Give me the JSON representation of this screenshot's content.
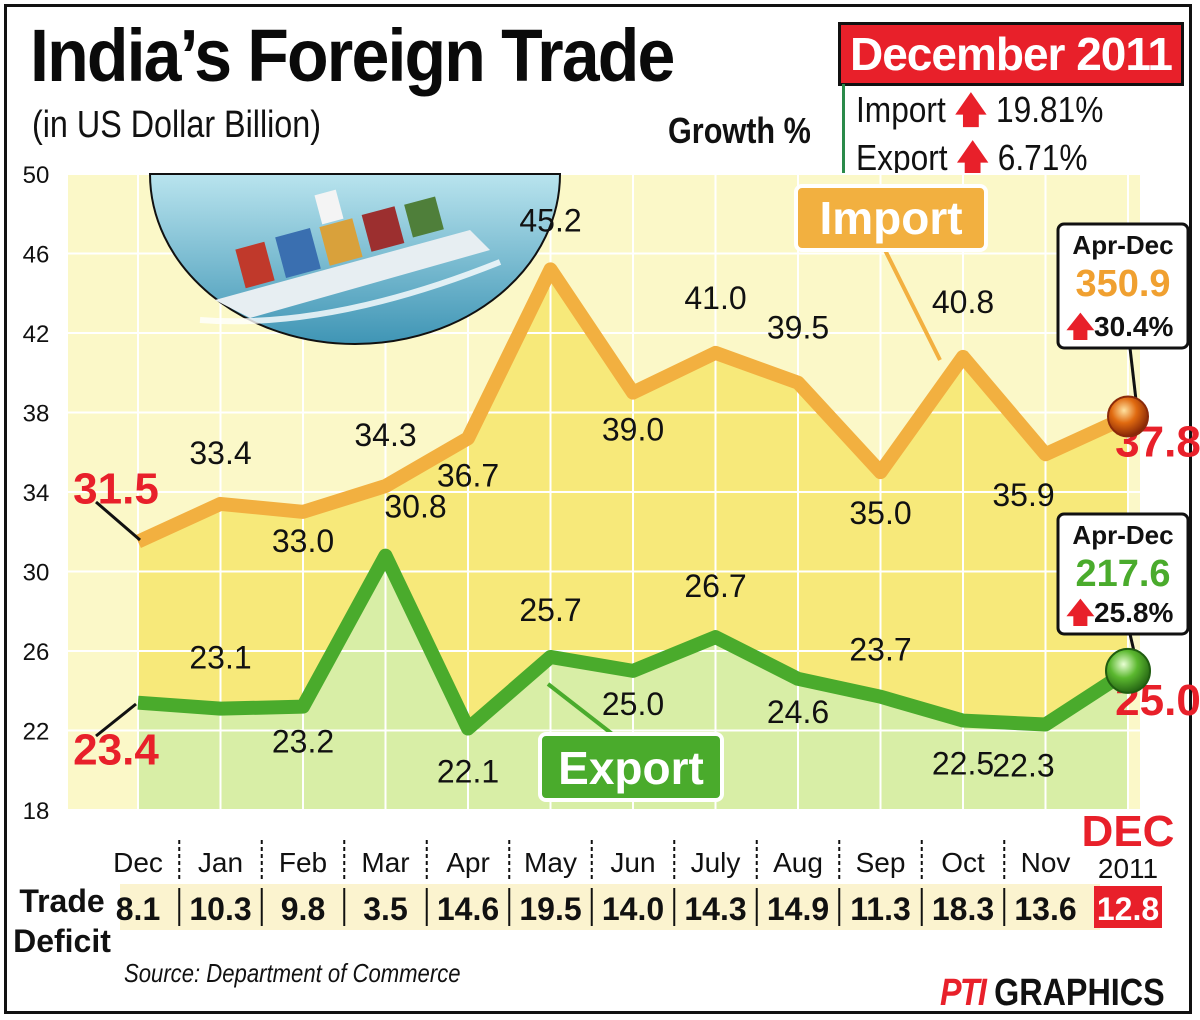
{
  "header": {
    "title": "India’s Foreign Trade",
    "subtitle": "(in US Dollar Billion)",
    "month_badge": "December 2011"
  },
  "growth": {
    "label": "Growth %",
    "import_label": "Import",
    "import_value": "19.81%",
    "export_label": "Export",
    "export_value": "6.71%"
  },
  "chart_data": {
    "type": "line",
    "title": "India’s Foreign Trade",
    "subtitle": "(in US Dollar Billion)",
    "categories": [
      "Dec",
      "Jan",
      "Feb",
      "Mar",
      "Apr",
      "May",
      "Jun",
      "July",
      "Aug",
      "Sep",
      "Oct",
      "Nov",
      "DEC"
    ],
    "year_label": "2011",
    "ylim": [
      18,
      50
    ],
    "yticks": [
      18,
      22,
      26,
      30,
      34,
      38,
      42,
      46,
      50
    ],
    "grid": true,
    "series": [
      {
        "name": "Import",
        "color": "#f2b040",
        "values": [
          31.5,
          33.4,
          33.0,
          34.3,
          36.7,
          45.2,
          39.0,
          41.0,
          39.5,
          35.0,
          40.8,
          35.9,
          37.8
        ],
        "labels": [
          "31.5",
          "33.4",
          "33.0",
          "34.3",
          "36.7",
          "45.2",
          "39.0",
          "41.0",
          "39.5",
          "35.0",
          "40.8",
          "35.9",
          "37.8"
        ]
      },
      {
        "name": "Export",
        "color": "#4aab2c",
        "values": [
          23.4,
          23.1,
          23.2,
          30.8,
          22.1,
          25.7,
          25.0,
          26.7,
          24.6,
          23.7,
          22.5,
          22.3,
          25.0
        ],
        "labels": [
          "23.4",
          "23.1",
          "23.2",
          "30.8",
          "22.1",
          "25.7",
          "25.0",
          "26.7",
          "24.6",
          "23.7",
          "22.5",
          "22.3",
          "25.0"
        ]
      }
    ],
    "trade_deficit": {
      "label_line1": "Trade",
      "label_line2": "Deficit",
      "values": [
        "8.1",
        "10.3",
        "9.8",
        "3.5",
        "14.6",
        "19.5",
        "14.0",
        "14.3",
        "14.9",
        "11.3",
        "18.3",
        "13.6",
        "12.8"
      ]
    },
    "callouts": {
      "import": {
        "period": "Apr-Dec",
        "total": "350.9",
        "growth": "30.4%"
      },
      "export": {
        "period": "Apr-Dec",
        "total": "217.6",
        "growth": "25.8%"
      }
    }
  },
  "footer": {
    "source": "Source: Department of Commerce",
    "credit_logo": "PTI",
    "credit_text": "GRAPHICS"
  }
}
